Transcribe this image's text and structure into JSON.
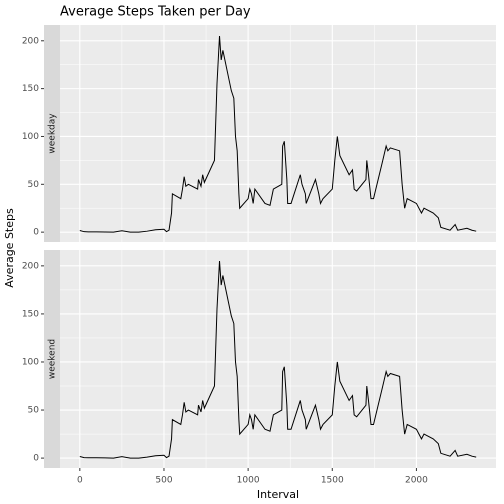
{
  "chart_data": {
    "type": "line",
    "title": "Average Steps Taken per Day",
    "xlabel": "Interval",
    "ylabel": "Average Steps",
    "color": "#000000",
    "grid": true,
    "xlim": [
      -117.75,
      2472.75
    ],
    "ylim": [
      -10.3,
      216.5
    ],
    "xticks": [
      0,
      500,
      1000,
      1500,
      2000
    ],
    "yticks": [
      0,
      50,
      100,
      150,
      200
    ],
    "x": [
      0,
      25,
      50,
      100,
      150,
      200,
      250,
      300,
      350,
      400,
      450,
      500,
      515,
      530,
      545,
      550,
      600,
      610,
      620,
      630,
      645,
      700,
      705,
      720,
      730,
      740,
      800,
      815,
      830,
      840,
      850,
      900,
      915,
      925,
      935,
      945,
      950,
      1000,
      1010,
      1020,
      1030,
      1040,
      1100,
      1130,
      1150,
      1200,
      1205,
      1215,
      1230,
      1235,
      1255,
      1310,
      1320,
      1330,
      1340,
      1345,
      1400,
      1420,
      1430,
      1445,
      1500,
      1515,
      1530,
      1545,
      1600,
      1620,
      1630,
      1645,
      1700,
      1705,
      1715,
      1730,
      1745,
      1800,
      1820,
      1830,
      1845,
      1900,
      1915,
      1930,
      1945,
      2000,
      2030,
      2045,
      2100,
      2130,
      2145,
      2200,
      2230,
      2245,
      2300,
      2330,
      2355
    ],
    "panels": [
      {
        "name": "weekday",
        "values": [
          1.7,
          0.5,
          0.3,
          0.3,
          0.2,
          0,
          1.5,
          0,
          0,
          1,
          2.5,
          3,
          0.5,
          2,
          20,
          40,
          35,
          45,
          58,
          48,
          50,
          45,
          55,
          48,
          60,
          52,
          75,
          155,
          205,
          180,
          190,
          148,
          140,
          100,
          85,
          40,
          25,
          35,
          45,
          40,
          30,
          45,
          30,
          28,
          45,
          50,
          90,
          95,
          55,
          30,
          30,
          60,
          50,
          45,
          40,
          30,
          55,
          40,
          30,
          35,
          45,
          75,
          100,
          80,
          60,
          65,
          45,
          43,
          55,
          75,
          60,
          35,
          35,
          75,
          90,
          85,
          88,
          85,
          50,
          25,
          35,
          30,
          20,
          25,
          20,
          15,
          5,
          2,
          8,
          2,
          4,
          2,
          1
        ]
      },
      {
        "name": "weekend",
        "values": [
          1.7,
          0.5,
          0.3,
          0.3,
          0.2,
          0,
          1.5,
          0,
          0,
          1,
          2.5,
          3,
          0.5,
          2,
          20,
          40,
          35,
          45,
          58,
          48,
          50,
          45,
          55,
          48,
          60,
          52,
          75,
          155,
          205,
          180,
          190,
          148,
          140,
          100,
          85,
          40,
          25,
          35,
          45,
          40,
          30,
          45,
          30,
          28,
          45,
          50,
          90,
          95,
          55,
          30,
          30,
          60,
          50,
          45,
          40,
          30,
          55,
          40,
          30,
          35,
          45,
          75,
          100,
          80,
          60,
          65,
          45,
          43,
          55,
          75,
          60,
          35,
          35,
          75,
          90,
          85,
          88,
          85,
          50,
          25,
          35,
          30,
          20,
          25,
          20,
          15,
          5,
          2,
          8,
          2,
          4,
          2,
          1
        ]
      }
    ]
  }
}
